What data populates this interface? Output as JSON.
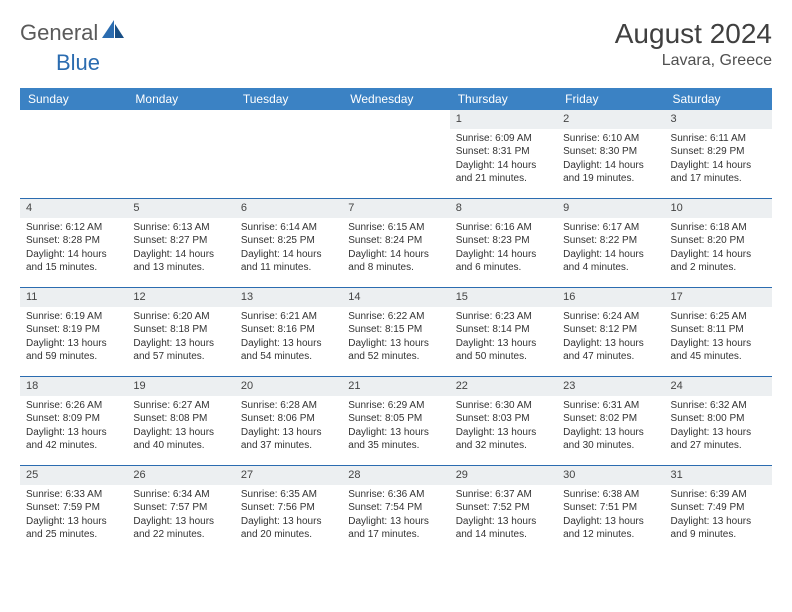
{
  "brand": {
    "part1": "General",
    "part2": "Blue"
  },
  "title": "August 2024",
  "location": "Lavara, Greece",
  "colors": {
    "header_bg": "#3b82c4",
    "header_text": "#ffffff",
    "rule": "#2b6cb0",
    "daynum_bg": "#eceff1",
    "text": "#333333",
    "brand_gray": "#5a5a5a",
    "brand_blue": "#2b6cb0"
  },
  "days_of_week": [
    "Sunday",
    "Monday",
    "Tuesday",
    "Wednesday",
    "Thursday",
    "Friday",
    "Saturday"
  ],
  "layout": {
    "columns": 7,
    "weeks": 5,
    "first_day_column_index": 4
  },
  "typography": {
    "body_font_size_pt": 8,
    "dow_font_size_pt": 9,
    "title_font_size_pt": 21,
    "location_font_size_pt": 12
  },
  "days": [
    {
      "n": 1,
      "sunrise": "6:09 AM",
      "sunset": "8:31 PM",
      "daylight": "14 hours and 21 minutes."
    },
    {
      "n": 2,
      "sunrise": "6:10 AM",
      "sunset": "8:30 PM",
      "daylight": "14 hours and 19 minutes."
    },
    {
      "n": 3,
      "sunrise": "6:11 AM",
      "sunset": "8:29 PM",
      "daylight": "14 hours and 17 minutes."
    },
    {
      "n": 4,
      "sunrise": "6:12 AM",
      "sunset": "8:28 PM",
      "daylight": "14 hours and 15 minutes."
    },
    {
      "n": 5,
      "sunrise": "6:13 AM",
      "sunset": "8:27 PM",
      "daylight": "14 hours and 13 minutes."
    },
    {
      "n": 6,
      "sunrise": "6:14 AM",
      "sunset": "8:25 PM",
      "daylight": "14 hours and 11 minutes."
    },
    {
      "n": 7,
      "sunrise": "6:15 AM",
      "sunset": "8:24 PM",
      "daylight": "14 hours and 8 minutes."
    },
    {
      "n": 8,
      "sunrise": "6:16 AM",
      "sunset": "8:23 PM",
      "daylight": "14 hours and 6 minutes."
    },
    {
      "n": 9,
      "sunrise": "6:17 AM",
      "sunset": "8:22 PM",
      "daylight": "14 hours and 4 minutes."
    },
    {
      "n": 10,
      "sunrise": "6:18 AM",
      "sunset": "8:20 PM",
      "daylight": "14 hours and 2 minutes."
    },
    {
      "n": 11,
      "sunrise": "6:19 AM",
      "sunset": "8:19 PM",
      "daylight": "13 hours and 59 minutes."
    },
    {
      "n": 12,
      "sunrise": "6:20 AM",
      "sunset": "8:18 PM",
      "daylight": "13 hours and 57 minutes."
    },
    {
      "n": 13,
      "sunrise": "6:21 AM",
      "sunset": "8:16 PM",
      "daylight": "13 hours and 54 minutes."
    },
    {
      "n": 14,
      "sunrise": "6:22 AM",
      "sunset": "8:15 PM",
      "daylight": "13 hours and 52 minutes."
    },
    {
      "n": 15,
      "sunrise": "6:23 AM",
      "sunset": "8:14 PM",
      "daylight": "13 hours and 50 minutes."
    },
    {
      "n": 16,
      "sunrise": "6:24 AM",
      "sunset": "8:12 PM",
      "daylight": "13 hours and 47 minutes."
    },
    {
      "n": 17,
      "sunrise": "6:25 AM",
      "sunset": "8:11 PM",
      "daylight": "13 hours and 45 minutes."
    },
    {
      "n": 18,
      "sunrise": "6:26 AM",
      "sunset": "8:09 PM",
      "daylight": "13 hours and 42 minutes."
    },
    {
      "n": 19,
      "sunrise": "6:27 AM",
      "sunset": "8:08 PM",
      "daylight": "13 hours and 40 minutes."
    },
    {
      "n": 20,
      "sunrise": "6:28 AM",
      "sunset": "8:06 PM",
      "daylight": "13 hours and 37 minutes."
    },
    {
      "n": 21,
      "sunrise": "6:29 AM",
      "sunset": "8:05 PM",
      "daylight": "13 hours and 35 minutes."
    },
    {
      "n": 22,
      "sunrise": "6:30 AM",
      "sunset": "8:03 PM",
      "daylight": "13 hours and 32 minutes."
    },
    {
      "n": 23,
      "sunrise": "6:31 AM",
      "sunset": "8:02 PM",
      "daylight": "13 hours and 30 minutes."
    },
    {
      "n": 24,
      "sunrise": "6:32 AM",
      "sunset": "8:00 PM",
      "daylight": "13 hours and 27 minutes."
    },
    {
      "n": 25,
      "sunrise": "6:33 AM",
      "sunset": "7:59 PM",
      "daylight": "13 hours and 25 minutes."
    },
    {
      "n": 26,
      "sunrise": "6:34 AM",
      "sunset": "7:57 PM",
      "daylight": "13 hours and 22 minutes."
    },
    {
      "n": 27,
      "sunrise": "6:35 AM",
      "sunset": "7:56 PM",
      "daylight": "13 hours and 20 minutes."
    },
    {
      "n": 28,
      "sunrise": "6:36 AM",
      "sunset": "7:54 PM",
      "daylight": "13 hours and 17 minutes."
    },
    {
      "n": 29,
      "sunrise": "6:37 AM",
      "sunset": "7:52 PM",
      "daylight": "13 hours and 14 minutes."
    },
    {
      "n": 30,
      "sunrise": "6:38 AM",
      "sunset": "7:51 PM",
      "daylight": "13 hours and 12 minutes."
    },
    {
      "n": 31,
      "sunrise": "6:39 AM",
      "sunset": "7:49 PM",
      "daylight": "13 hours and 9 minutes."
    }
  ],
  "labels": {
    "sunrise": "Sunrise: ",
    "sunset": "Sunset: ",
    "daylight": "Daylight: "
  }
}
